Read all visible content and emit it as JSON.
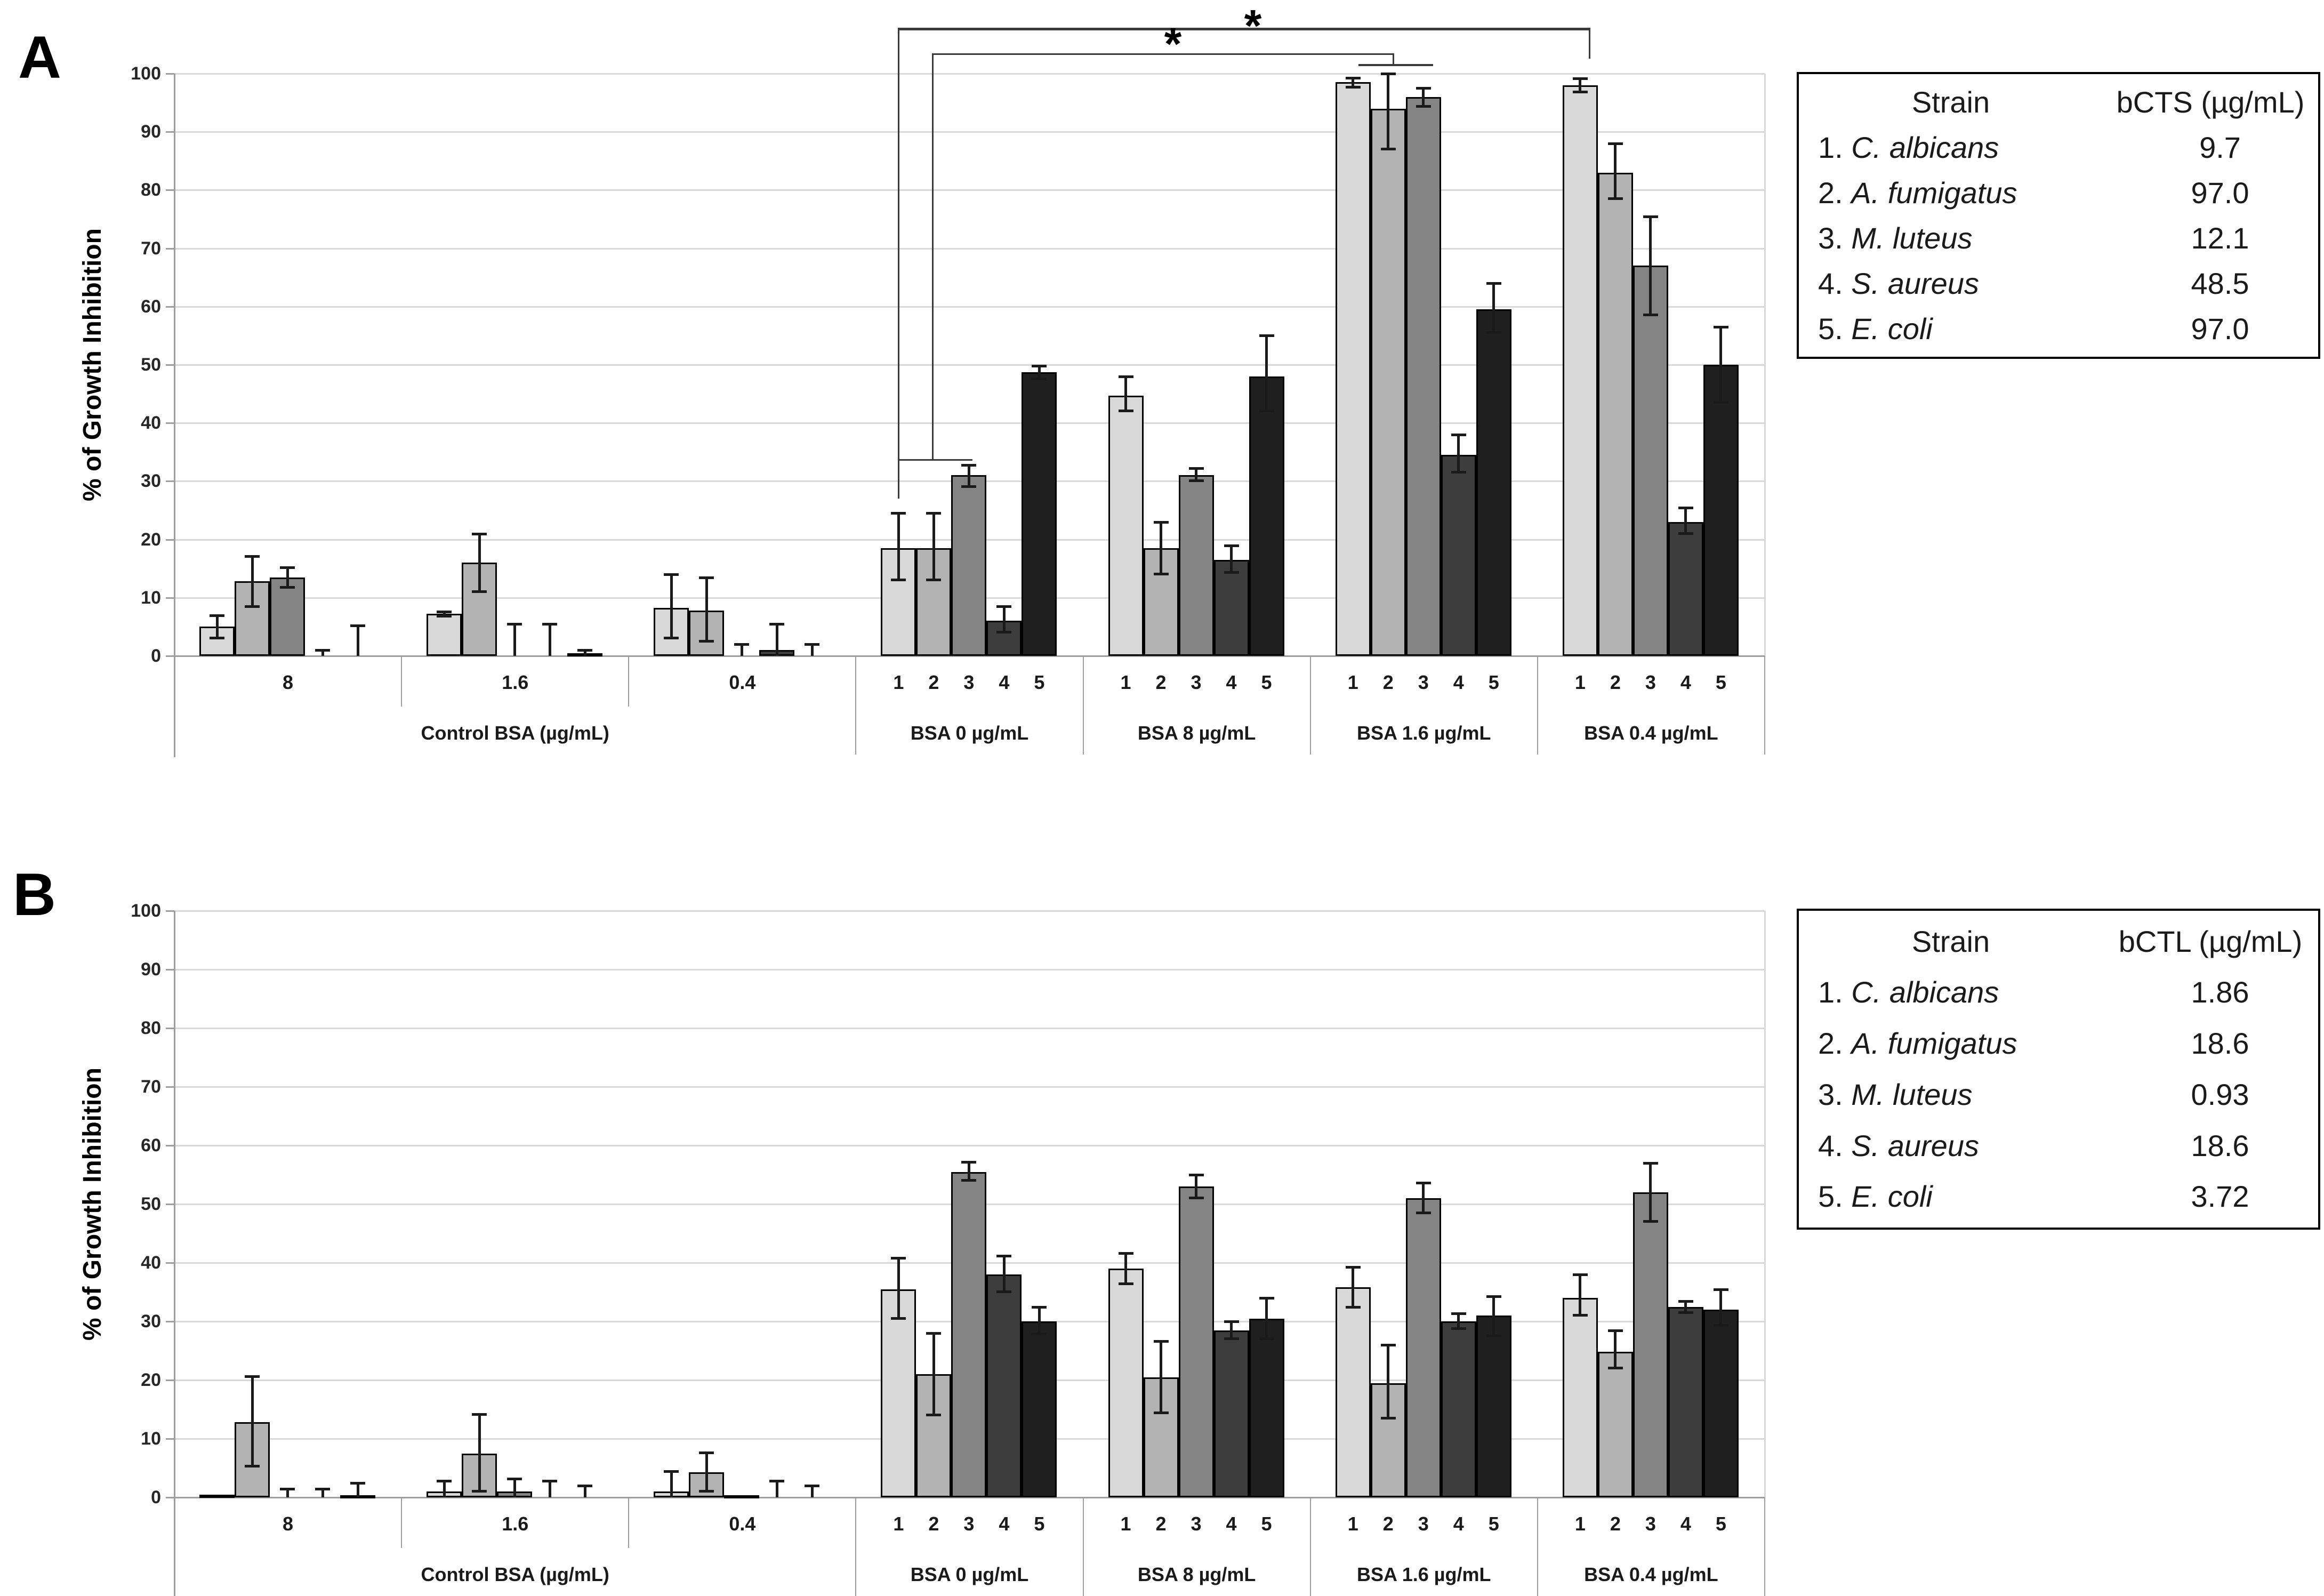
{
  "figure": {
    "background": "#ffffff",
    "bar_colors": [
      "#d9d9d9",
      "#b3b3b3",
      "#848484",
      "#3d3d3d",
      "#1f1f1f"
    ],
    "bar_outline": "#000000",
    "grid_color": "#d9d9d9",
    "axis_color": "#9e9e9e",
    "significance_color": "#3a3a3a"
  },
  "chart_data": [
    {
      "type": "bar",
      "panel": "A",
      "ylabel": "% of Growth Inhibition",
      "ylim": [
        0,
        100
      ],
      "ytick_labels": [
        "0",
        "10",
        "20",
        "30",
        "40",
        "50",
        "60",
        "70",
        "80",
        "90",
        "100"
      ],
      "grid": true,
      "legend_position": "right",
      "categories": [
        "8",
        "1.6",
        "0.4",
        "BSA 0 µg/mL",
        "BSA 8 µg/mL",
        "BSA 1.6 µg/mL",
        "BSA 0.4 µg/mL"
      ],
      "category_types": [
        "control",
        "control",
        "control",
        "treatment",
        "treatment",
        "treatment",
        "treatment"
      ],
      "control_region_label": "Control BSA (µg/mL)",
      "bar_number_labels": [
        "1",
        "2",
        "3",
        "4",
        "5"
      ],
      "series": [
        {
          "name": "1. C. albicans",
          "values": [
            5,
            7.2,
            8.2,
            18.5,
            44.7,
            98.5,
            98
          ],
          "err_lo": [
            3,
            6.8,
            3,
            13,
            42,
            97.6,
            96.8
          ],
          "err_hi": [
            7,
            7.6,
            14,
            24.5,
            48,
            99.3,
            99.2
          ]
        },
        {
          "name": "2. A. fumigatus",
          "values": [
            12.8,
            16,
            7.8,
            18.5,
            18.5,
            94,
            83
          ],
          "err_lo": [
            8.4,
            11,
            2.5,
            13,
            14,
            87,
            78.5
          ],
          "err_hi": [
            17.1,
            21,
            13.5,
            24.5,
            23,
            100,
            88
          ]
        },
        {
          "name": "3. M. luteus",
          "values": [
            13.5,
            0,
            0,
            31,
            31,
            96,
            67
          ],
          "err_lo": [
            11.7,
            0,
            0,
            29,
            30,
            94.3,
            58.5
          ],
          "err_hi": [
            15.2,
            5.5,
            2,
            32.8,
            32.2,
            97.5,
            75.5
          ]
        },
        {
          "name": "4. S. aureus",
          "values": [
            0,
            0,
            1,
            6,
            16.5,
            34.5,
            23
          ],
          "err_lo": [
            0,
            0,
            0,
            4,
            14.3,
            31.5,
            21
          ],
          "err_hi": [
            1,
            5.5,
            5.5,
            8.5,
            19,
            38,
            25.5
          ]
        },
        {
          "name": "5. E. coli",
          "values": [
            0,
            0.5,
            0,
            48.7,
            48,
            59.5,
            50
          ],
          "err_lo": [
            0,
            0,
            0,
            47.5,
            42,
            55.5,
            43.5
          ],
          "err_hi": [
            5.2,
            1,
            2,
            49.8,
            55,
            64,
            56.5
          ]
        }
      ],
      "significance": [
        {
          "symbol": "*",
          "compares": "BSA 0 µg/mL vs BSA 0.4 µg/mL"
        },
        {
          "symbol": "*",
          "compares": "BSA 0 µg/mL vs BSA 1.6 µg/mL"
        }
      ],
      "legend": {
        "col1_header": "Strain",
        "col2_header": "bCTS (µg/mL)",
        "rows": [
          {
            "num": "1.",
            "name": "C. albicans",
            "value": "9.7"
          },
          {
            "num": "2.",
            "name": "A. fumigatus",
            "value": "97.0"
          },
          {
            "num": "3.",
            "name": "M. luteus",
            "value": "12.1"
          },
          {
            "num": "4.",
            "name": "S. aureus",
            "value": "48.5"
          },
          {
            "num": "5.",
            "name": "E. coli",
            "value": "97.0"
          }
        ]
      }
    },
    {
      "type": "bar",
      "panel": "B",
      "ylabel": "% of Growth Inhibition",
      "ylim": [
        0,
        100
      ],
      "ytick_labels": [
        "0",
        "10",
        "20",
        "30",
        "40",
        "50",
        "60",
        "70",
        "80",
        "90",
        "100"
      ],
      "grid": true,
      "legend_position": "right",
      "categories": [
        "8",
        "1.6",
        "0.4",
        "BSA 0 µg/mL",
        "BSA 8 µg/mL",
        "BSA 1.6 µg/mL",
        "BSA 0.4 µg/mL"
      ],
      "category_types": [
        "control",
        "control",
        "control",
        "treatment",
        "treatment",
        "treatment",
        "treatment"
      ],
      "control_region_label": "Control BSA (µg/mL)",
      "bar_number_labels": [
        "1",
        "2",
        "3",
        "4",
        "5"
      ],
      "series": [
        {
          "name": "1. C. albicans",
          "values": [
            0.5,
            1,
            1,
            35.5,
            39,
            35.8,
            34
          ],
          "err_lo": [
            0.5,
            0,
            0,
            30.5,
            36.4,
            32.4,
            31
          ],
          "err_hi": [
            0.5,
            2.8,
            4.5,
            40.8,
            41.6,
            39.3,
            38
          ]
        },
        {
          "name": "2. A. fumigatus",
          "values": [
            12.8,
            7.5,
            4.3,
            21,
            20.5,
            19.5,
            24.8
          ],
          "err_lo": [
            5.3,
            1,
            1,
            14,
            14.4,
            13.5,
            22
          ],
          "err_hi": [
            20.6,
            14.2,
            7.6,
            28,
            26.6,
            26,
            28.5
          ]
        },
        {
          "name": "3. M. luteus",
          "values": [
            0,
            1,
            0.3,
            55.5,
            53,
            51,
            52
          ],
          "err_lo": [
            0,
            0,
            0.3,
            54,
            51,
            48.5,
            47
          ],
          "err_hi": [
            1.5,
            3.2,
            0.3,
            57.2,
            55,
            53.6,
            57
          ]
        },
        {
          "name": "4. S. aureus",
          "values": [
            0,
            0,
            0,
            38,
            28.5,
            30,
            32.5
          ],
          "err_lo": [
            0,
            0,
            0,
            35,
            27,
            28.7,
            31.5
          ],
          "err_hi": [
            1.5,
            2.8,
            2.8,
            41.2,
            30,
            31.4,
            33.5
          ]
        },
        {
          "name": "5. E. coli",
          "values": [
            0.4,
            0,
            0,
            30,
            30.5,
            31,
            32
          ],
          "err_lo": [
            0,
            0,
            0,
            27.8,
            27,
            27.5,
            29.3
          ],
          "err_hi": [
            2.5,
            2,
            2,
            32.5,
            34,
            34.3,
            35.5
          ]
        }
      ],
      "significance": [],
      "legend": {
        "col1_header": "Strain",
        "col2_header": "bCTL (µg/mL)",
        "rows": [
          {
            "num": "1.",
            "name": "C. albicans",
            "value": "1.86"
          },
          {
            "num": "2.",
            "name": "A. fumigatus",
            "value": "18.6"
          },
          {
            "num": "3.",
            "name": "M. luteus",
            "value": "0.93"
          },
          {
            "num": "4.",
            "name": "S. aureus",
            "value": "18.6"
          },
          {
            "num": "5.",
            "name": "E. coli",
            "value": "3.72"
          }
        ]
      }
    }
  ]
}
